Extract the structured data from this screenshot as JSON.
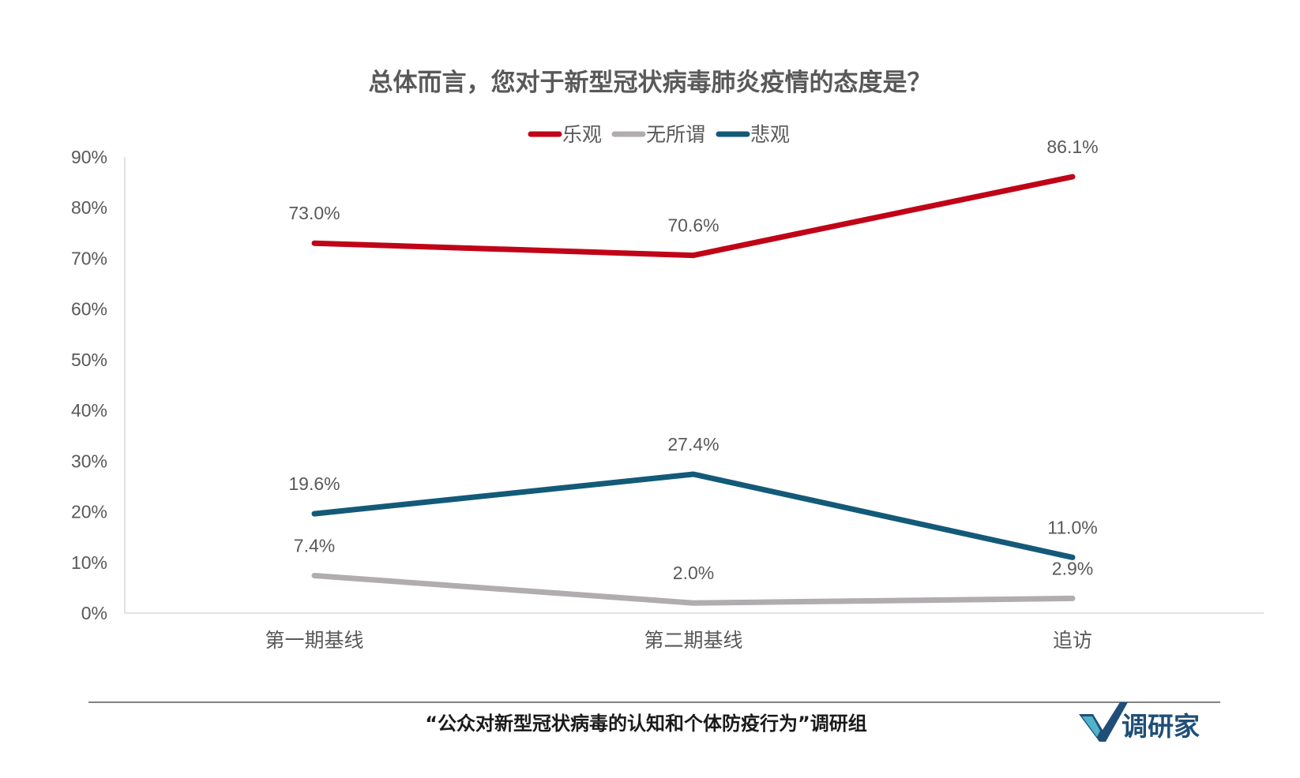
{
  "chart_data": {
    "type": "line",
    "title": "总体而言，您对于新型冠状病毒肺炎疫情的态度是？",
    "categories": [
      "第一期基线",
      "第二期基线",
      "追访"
    ],
    "ylim": [
      0,
      90
    ],
    "yticks": [
      "0%",
      "10%",
      "20%",
      "30%",
      "40%",
      "50%",
      "60%",
      "70%",
      "80%",
      "90%"
    ],
    "grid": false,
    "legend_position": "top",
    "series": [
      {
        "name": "乐观",
        "color": "#c00418",
        "values": [
          73.0,
          70.6,
          86.1
        ],
        "labels": [
          "73.0%",
          "70.6%",
          "86.1%"
        ]
      },
      {
        "name": "无所谓",
        "color": "#b0acaf",
        "values": [
          7.4,
          2.0,
          2.9
        ],
        "labels": [
          "7.4%",
          "2.0%",
          "2.9%"
        ]
      },
      {
        "name": "悲观",
        "color": "#135a78",
        "values": [
          19.6,
          27.4,
          11.0
        ],
        "labels": [
          "19.6%",
          "27.4%",
          "11.0%"
        ]
      }
    ]
  },
  "footer": {
    "source": "“公众对新型冠状病毒的认知和个体防疫行为”调研组",
    "brand": "调研家",
    "brand_color": "#1f4e79"
  }
}
